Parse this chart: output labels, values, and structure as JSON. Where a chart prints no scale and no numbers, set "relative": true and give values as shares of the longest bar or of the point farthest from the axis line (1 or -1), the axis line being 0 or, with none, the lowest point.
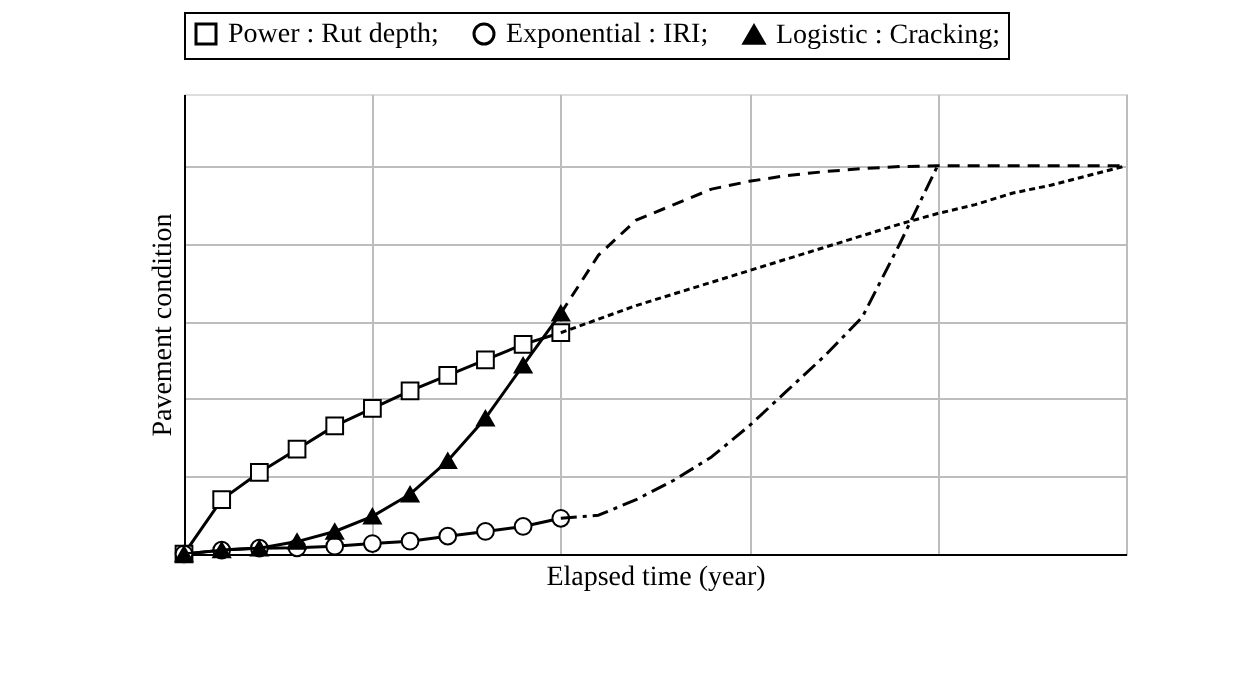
{
  "chart_data": {
    "type": "line",
    "relative": true,
    "xlabel": "Elapsed time (year)",
    "ylabel": "Pavement condition",
    "categories": [
      null,
      null,
      null,
      null,
      null,
      null,
      null,
      null,
      null,
      null,
      null,
      null,
      null,
      null,
      null,
      null,
      null,
      null,
      null,
      null,
      null,
      null,
      null,
      null,
      null,
      null
    ],
    "grid": true,
    "legend": "top",
    "tick_labels": false,
    "series": [
      {
        "name": "Power : Rut depth;",
        "color": "#000000",
        "marker": "square",
        "line_style": "solid",
        "values": [
          0.0,
          0.14,
          0.21,
          0.27,
          0.33,
          0.375,
          0.42,
          0.46,
          0.5,
          0.54,
          0.57,
          null,
          null,
          null,
          null,
          null,
          null,
          null,
          null,
          null,
          null,
          null,
          null,
          null,
          null,
          null
        ]
      },
      {
        "name": "Exponential : IRI;",
        "color": "#000000",
        "marker": "circle",
        "line_style": "solid",
        "values": [
          0.0,
          0.01,
          0.015,
          0.016,
          0.02,
          0.027,
          0.033,
          0.046,
          0.058,
          0.071,
          0.092,
          null,
          null,
          null,
          null,
          null,
          null,
          null,
          null,
          null,
          null,
          null,
          null,
          null,
          null,
          null
        ]
      },
      {
        "name": "Logistic : Cracking;",
        "color": "#000000",
        "marker": "triangle",
        "line_style": "solid",
        "values": [
          0.0,
          0.01,
          0.015,
          0.032,
          0.058,
          0.097,
          0.154,
          0.24,
          0.35,
          0.486,
          0.62,
          null,
          null,
          null,
          null,
          null,
          null,
          null,
          null,
          null,
          null,
          null,
          null,
          null,
          null,
          null
        ]
      },
      {
        "color": "#000000",
        "marker": "none",
        "line_style": "dotted",
        "values": [
          null,
          null,
          null,
          null,
          null,
          null,
          null,
          null,
          null,
          null,
          0.57,
          0.605,
          0.64,
          0.67,
          0.7,
          0.73,
          0.76,
          0.79,
          0.82,
          0.85,
          0.877,
          0.9,
          0.93,
          0.95,
          0.975,
          1.0
        ]
      },
      {
        "color": "#000000",
        "marker": "none",
        "line_style": "dashdot",
        "values": [
          null,
          null,
          null,
          null,
          null,
          null,
          null,
          null,
          null,
          null,
          0.092,
          0.1,
          0.14,
          0.19,
          0.25,
          0.33,
          0.42,
          0.51,
          0.61,
          0.8,
          1.0,
          null,
          null,
          null,
          null,
          null
        ]
      },
      {
        "color": "#000000",
        "marker": "none",
        "line_style": "dashed",
        "values": [
          null,
          null,
          null,
          null,
          null,
          null,
          null,
          null,
          null,
          null,
          0.62,
          0.77,
          0.86,
          0.9,
          0.94,
          0.96,
          0.975,
          0.985,
          0.993,
          0.998,
          1.0,
          1.0,
          1.0,
          1.0,
          1.0,
          1.0
        ]
      }
    ]
  }
}
